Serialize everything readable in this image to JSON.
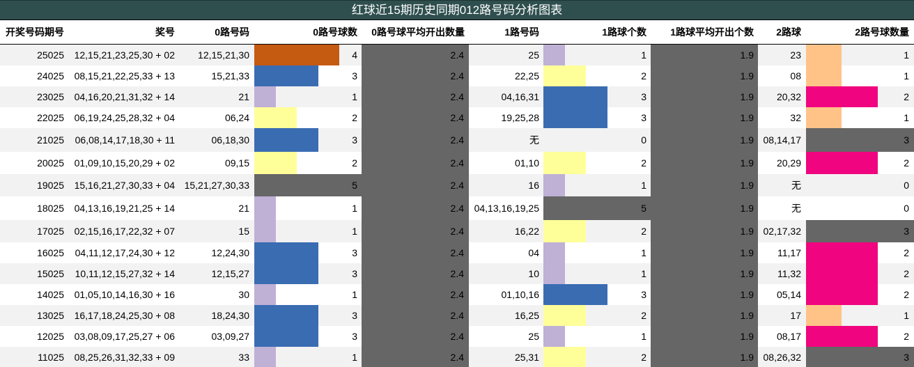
{
  "title": "红球近15期历史同期012路号码分析图表",
  "columns": [
    "开奖号码期号",
    "奖号",
    "0路号码",
    "0路号球数",
    "0路号球平均开出数量",
    "1路号码",
    "1路球个数",
    "1路球平均开出个数",
    "2路球",
    "2路号球数量"
  ],
  "colors": {
    "count_0": "#ffffff",
    "count_1": "#bfb0d6",
    "count_2": "#ffff99",
    "count_3": "#3a6cb2",
    "count_4": "#c55a11",
    "count_5": "#666666",
    "r2_count_1": "#ffc388",
    "r2_count_2": "#f0047f",
    "r2_count_3": "#666666",
    "avg_background": "#666666",
    "title_background": "#2f4f4f",
    "stripe": "#f2f2f2"
  },
  "chart_data": {
    "type": "table",
    "title": "红球近15期历史同期012路号码分析图表",
    "avg_route0": "2.4",
    "avg_route1": "1.9",
    "rows": [
      {
        "issue": "25025",
        "numbers": "12,15,21,23,25,30 + 02",
        "r0_nums": "12,15,21,30",
        "r0_count": 4,
        "r0_avg": "2.4",
        "r1_nums": "25",
        "r1_count": 1,
        "r1_avg": "1.9",
        "r2_nums": "23",
        "r2_count": 1
      },
      {
        "issue": "24025",
        "numbers": "08,15,21,22,25,33 + 13",
        "r0_nums": "15,21,33",
        "r0_count": 3,
        "r0_avg": "2.4",
        "r1_nums": "22,25",
        "r1_count": 2,
        "r1_avg": "1.9",
        "r2_nums": "08",
        "r2_count": 1
      },
      {
        "issue": "23025",
        "numbers": "04,16,20,21,31,32 + 14",
        "r0_nums": "21",
        "r0_count": 1,
        "r0_avg": "2.4",
        "r1_nums": "04,16,31",
        "r1_count": 3,
        "r1_avg": "1.9",
        "r2_nums": "20,32",
        "r2_count": 2
      },
      {
        "issue": "22025",
        "numbers": "06,19,24,25,28,32 + 04",
        "r0_nums": "06,24",
        "r0_count": 2,
        "r0_avg": "2.4",
        "r1_nums": "19,25,28",
        "r1_count": 3,
        "r1_avg": "1.9",
        "r2_nums": "32",
        "r2_count": 1
      },
      {
        "issue": "21025",
        "numbers": "06,08,14,17,18,30 + 11",
        "r0_nums": "06,18,30",
        "r0_count": 3,
        "r0_avg": "2.4",
        "r1_nums": "无",
        "r1_count": 0,
        "r1_avg": "1.9",
        "r2_nums": "08,14,17",
        "r2_count": 3
      },
      {
        "issue": "20025",
        "numbers": "01,09,10,15,20,29 + 02",
        "r0_nums": "09,15",
        "r0_count": 2,
        "r0_avg": "2.4",
        "r1_nums": "01,10",
        "r1_count": 2,
        "r1_avg": "1.9",
        "r2_nums": "20,29",
        "r2_count": 2
      },
      {
        "issue": "19025",
        "numbers": "15,16,21,27,30,33 + 04",
        "r0_nums": "15,21,27,30,33",
        "r0_count": 5,
        "r0_avg": "2.4",
        "r1_nums": "16",
        "r1_count": 1,
        "r1_avg": "1.9",
        "r2_nums": "无",
        "r2_count": 0
      },
      {
        "issue": "18025",
        "numbers": "04,13,16,19,21,25 + 14",
        "r0_nums": "21",
        "r0_count": 1,
        "r0_avg": "2.4",
        "r1_nums": "04,13,16,19,25",
        "r1_count": 5,
        "r1_avg": "1.9",
        "r2_nums": "无",
        "r2_count": 0
      },
      {
        "issue": "17025",
        "numbers": "02,15,16,17,22,32 + 07",
        "r0_nums": "15",
        "r0_count": 1,
        "r0_avg": "2.4",
        "r1_nums": "16,22",
        "r1_count": 2,
        "r1_avg": "1.9",
        "r2_nums": "02,17,32",
        "r2_count": 3
      },
      {
        "issue": "16025",
        "numbers": "04,11,12,17,24,30 + 12",
        "r0_nums": "12,24,30",
        "r0_count": 3,
        "r0_avg": "2.4",
        "r1_nums": "04",
        "r1_count": 1,
        "r1_avg": "1.9",
        "r2_nums": "11,17",
        "r2_count": 2
      },
      {
        "issue": "15025",
        "numbers": "10,11,12,15,27,32 + 14",
        "r0_nums": "12,15,27",
        "r0_count": 3,
        "r0_avg": "2.4",
        "r1_nums": "10",
        "r1_count": 1,
        "r1_avg": "1.9",
        "r2_nums": "11,32",
        "r2_count": 2
      },
      {
        "issue": "14025",
        "numbers": "01,05,10,14,16,30 + 16",
        "r0_nums": "30",
        "r0_count": 1,
        "r0_avg": "2.4",
        "r1_nums": "01,10,16",
        "r1_count": 3,
        "r1_avg": "1.9",
        "r2_nums": "05,14",
        "r2_count": 2
      },
      {
        "issue": "13025",
        "numbers": "16,17,18,24,25,30 + 08",
        "r0_nums": "18,24,30",
        "r0_count": 3,
        "r0_avg": "2.4",
        "r1_nums": "16,25",
        "r1_count": 2,
        "r1_avg": "1.9",
        "r2_nums": "17",
        "r2_count": 1
      },
      {
        "issue": "12025",
        "numbers": "03,08,09,17,25,27 + 06",
        "r0_nums": "03,09,27",
        "r0_count": 3,
        "r0_avg": "2.4",
        "r1_nums": "25",
        "r1_count": 1,
        "r1_avg": "1.9",
        "r2_nums": "08,17",
        "r2_count": 2
      },
      {
        "issue": "11025",
        "numbers": "08,25,26,31,32,33 + 09",
        "r0_nums": "33",
        "r0_count": 1,
        "r0_avg": "2.4",
        "r1_nums": "25,31",
        "r1_count": 2,
        "r1_avg": "1.9",
        "r2_nums": "08,26,32",
        "r2_count": 3
      }
    ]
  }
}
